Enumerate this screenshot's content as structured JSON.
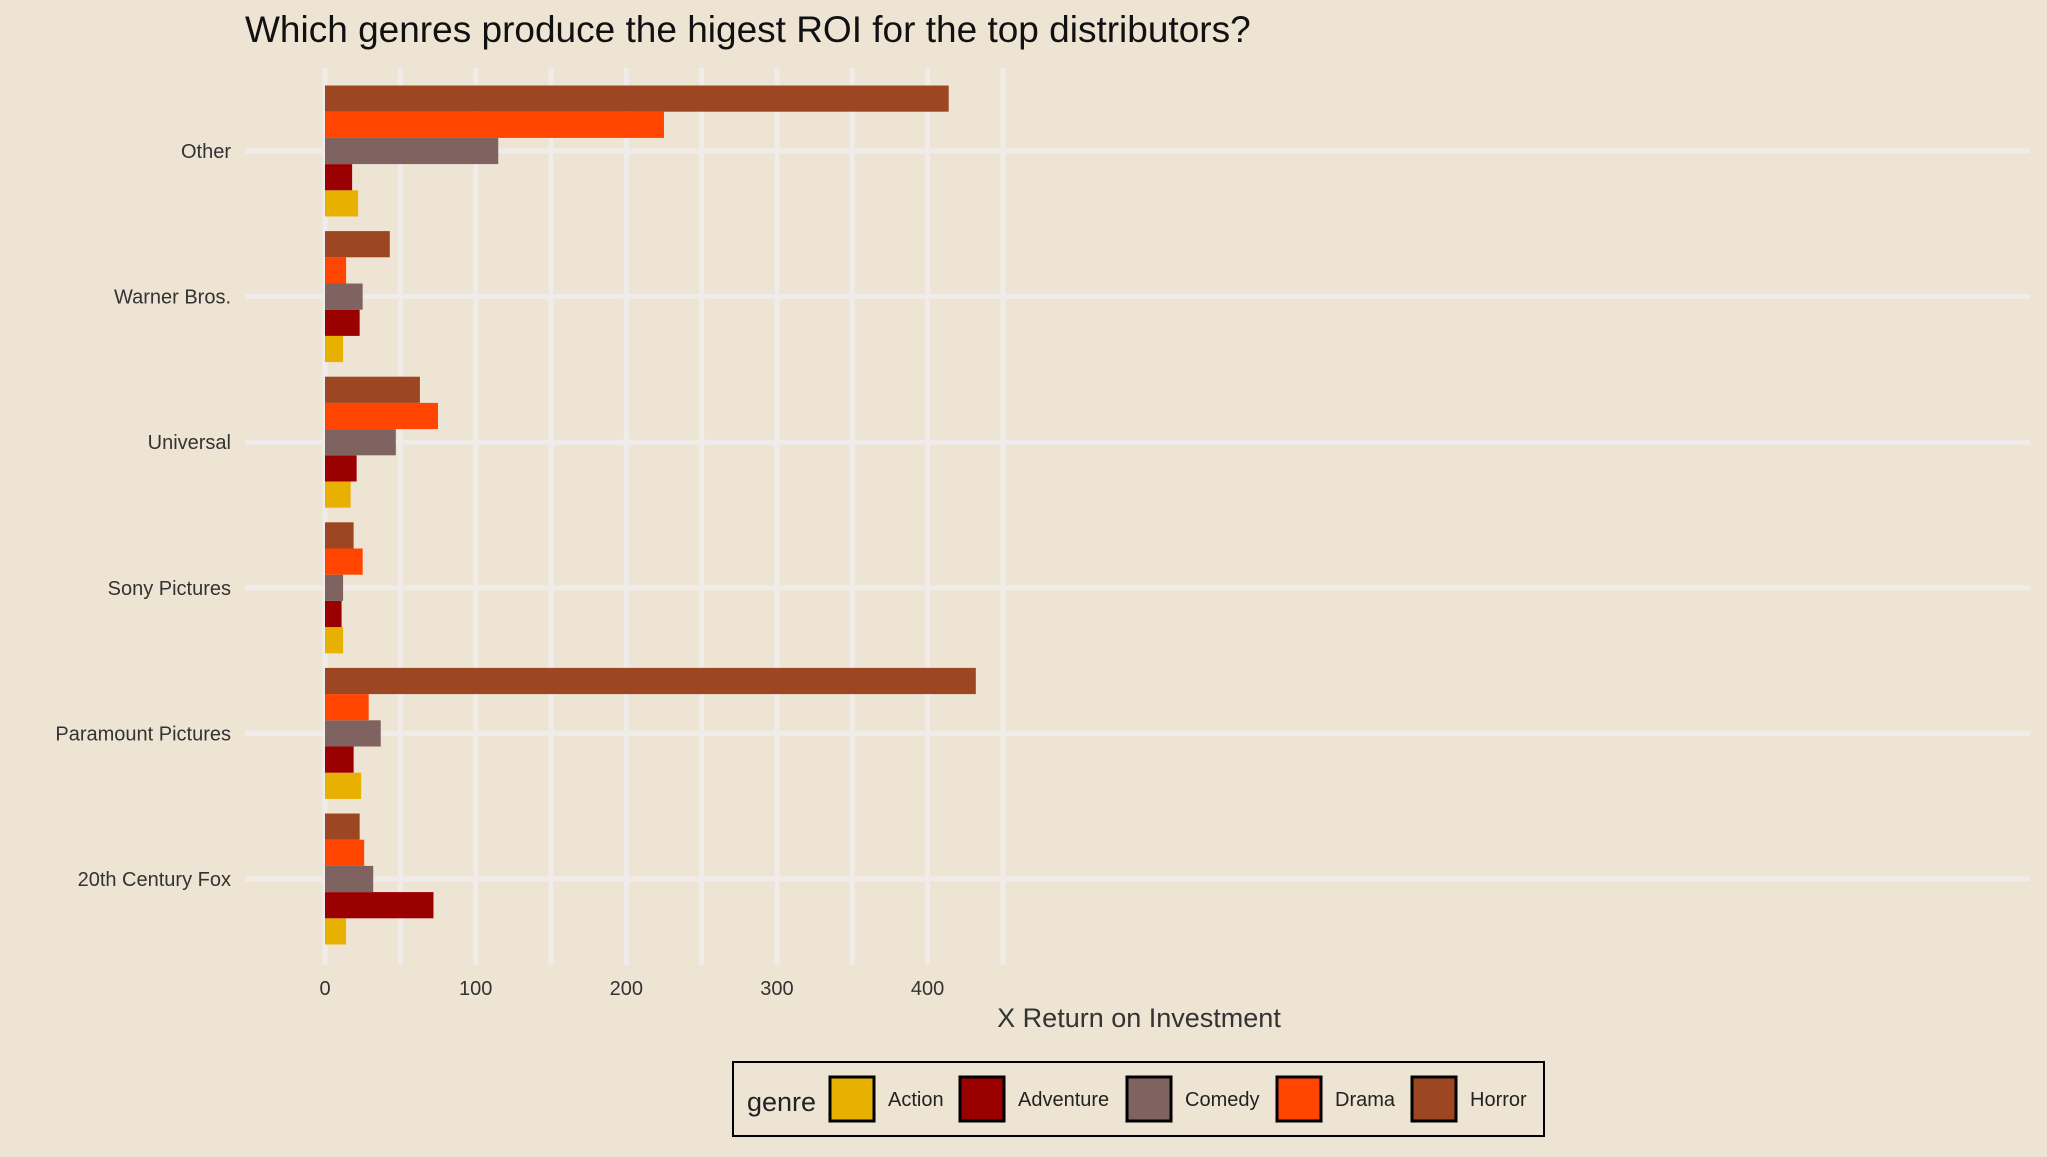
{
  "chart_data": {
    "type": "bar",
    "orientation": "horizontal",
    "title": "Which genres produce the higest ROI for the top distributors?",
    "xlabel": "X Return on Investment",
    "ylabel": "",
    "xlim": [
      -21,
      452
    ],
    "x_ticks": [
      0,
      100,
      200,
      300,
      400
    ],
    "categories": [
      "20th Century Fox",
      "Paramount Pictures",
      "Sony Pictures",
      "Universal",
      "Warner Bros.",
      "Other"
    ],
    "series": [
      {
        "name": "Action",
        "color": "#e8b000",
        "values": [
          14,
          24,
          12,
          17,
          12,
          22
        ]
      },
      {
        "name": "Adventure",
        "color": "#9b0000",
        "values": [
          72,
          19,
          11,
          21,
          23,
          18
        ]
      },
      {
        "name": "Comedy",
        "color": "#7f6360",
        "values": [
          32,
          37,
          12,
          47,
          25,
          115
        ]
      },
      {
        "name": "Drama",
        "color": "#ff4500",
        "values": [
          26,
          29,
          25,
          75,
          14,
          225
        ]
      },
      {
        "name": "Horror",
        "color": "#9c4722",
        "values": [
          23,
          432,
          19,
          63,
          43,
          414
        ]
      }
    ],
    "grid": true,
    "legend": {
      "title": "genre",
      "position": "bottom"
    }
  }
}
